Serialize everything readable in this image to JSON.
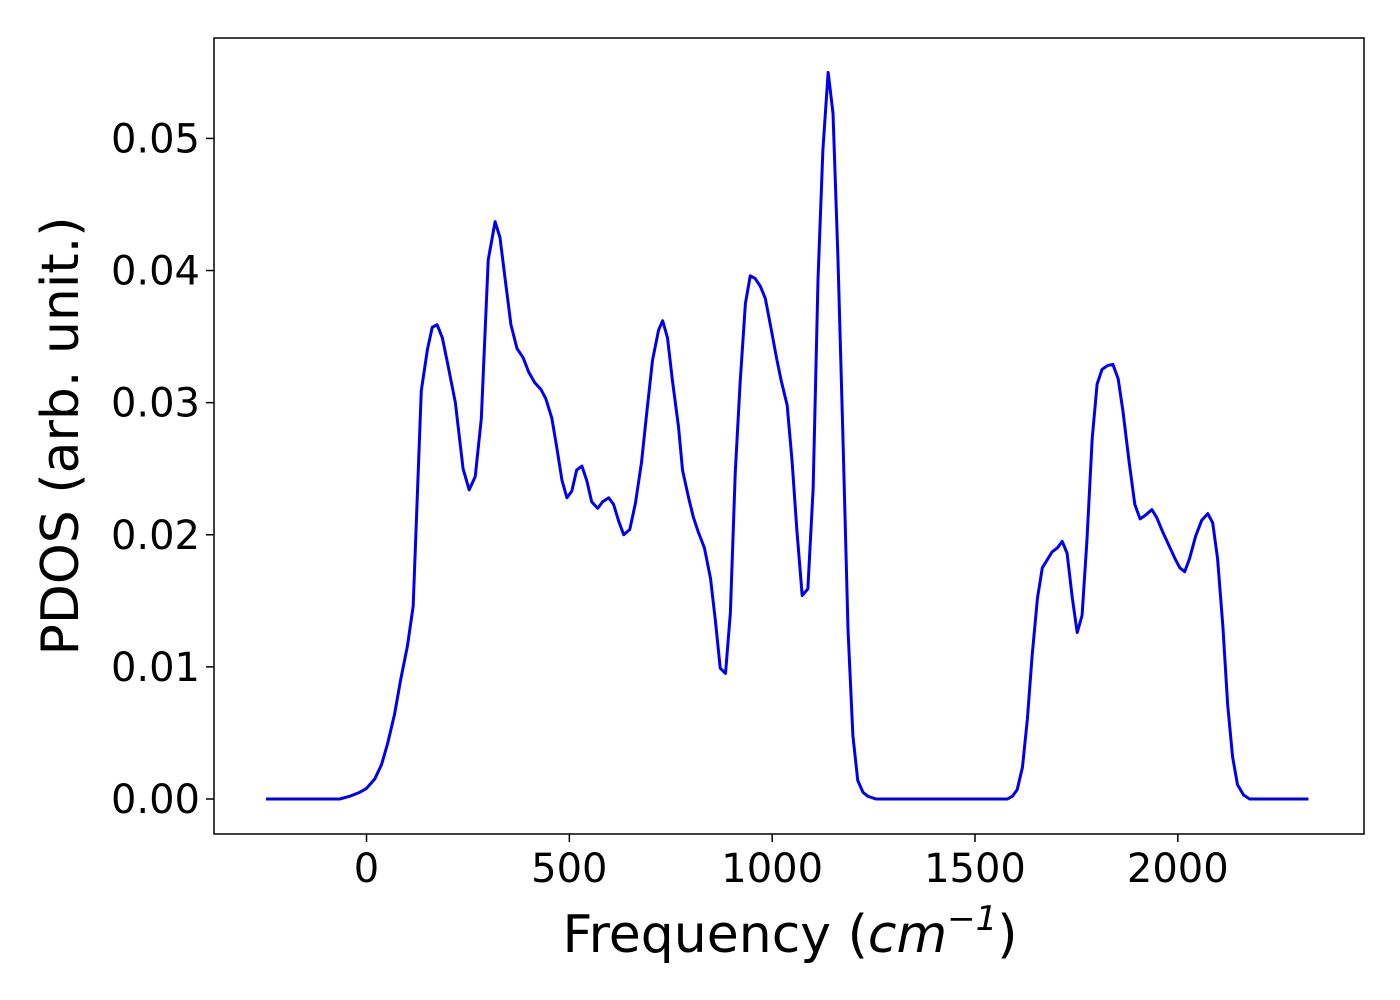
{
  "chart_data": {
    "type": "line",
    "xlabel": [
      "Frequency (",
      "cm",
      "−1",
      ")"
    ],
    "ylabel": "PDOS (arb. unit.)",
    "xlim": [
      -376,
      2459
    ],
    "ylim": [
      -0.00265,
      0.0576
    ],
    "xticks": [
      0,
      500,
      1000,
      1500,
      2000
    ],
    "yticks": [
      {
        "value": 0,
        "label": "0.00"
      },
      {
        "value": 0.01,
        "label": "0.01"
      },
      {
        "value": 0.02,
        "label": "0.02"
      },
      {
        "value": 0.03,
        "label": "0.03"
      },
      {
        "value": 0.04,
        "label": "0.04"
      },
      {
        "value": 0.05,
        "label": "0.05"
      }
    ],
    "grid": false,
    "series": [
      {
        "color": "#0000ee",
        "x": [
          -248,
          -66,
          -42,
          -17,
          0,
          20,
          37,
          52,
          69,
          84,
          101,
          115,
          135,
          150,
          162,
          174,
          187,
          201,
          219,
          238,
          253,
          268,
          283,
          300,
          317,
          329,
          342,
          356,
          371,
          386,
          400,
          415,
          430,
          442,
          457,
          469,
          482,
          494,
          506,
          518,
          531,
          543,
          555,
          570,
          582,
          597,
          609,
          622,
          634,
          649,
          663,
          678,
          690,
          705,
          720,
          730,
          742,
          754,
          769,
          779,
          794,
          806,
          818,
          833,
          848,
          860,
          872,
          885,
          897,
          909,
          921,
          934,
          946,
          958,
          971,
          983,
          998,
          1010,
          1022,
          1037,
          1049,
          1061,
          1074,
          1088,
          1101,
          1113,
          1125,
          1138,
          1150,
          1162,
          1174,
          1187,
          1199,
          1211,
          1224,
          1236,
          1256,
          1580,
          1592,
          1604,
          1617,
          1629,
          1641,
          1654,
          1666,
          1678,
          1690,
          1703,
          1715,
          1727,
          1740,
          1752,
          1764,
          1776,
          1789,
          1801,
          1813,
          1826,
          1840,
          1853,
          1865,
          1880,
          1894,
          1907,
          1921,
          1936,
          1948,
          1963,
          1978,
          1993,
          2005,
          2017,
          2029,
          2044,
          2059,
          2074,
          2086,
          2098,
          2111,
          2123,
          2135,
          2147,
          2162,
          2177,
          2322
        ],
        "values": [
          0,
          0,
          0.0002,
          0.0005,
          0.0008,
          0.0015,
          0.0026,
          0.0042,
          0.0064,
          0.009,
          0.0116,
          0.0146,
          0.0309,
          0.034,
          0.0357,
          0.0359,
          0.0349,
          0.0328,
          0.03,
          0.025,
          0.0234,
          0.0244,
          0.0288,
          0.0408,
          0.0437,
          0.0425,
          0.0393,
          0.0359,
          0.0341,
          0.0334,
          0.0323,
          0.0315,
          0.031,
          0.0303,
          0.0288,
          0.0266,
          0.0241,
          0.0228,
          0.0233,
          0.0249,
          0.0252,
          0.0241,
          0.0225,
          0.022,
          0.0225,
          0.0228,
          0.0223,
          0.021,
          0.02,
          0.0204,
          0.0224,
          0.0255,
          0.029,
          0.0332,
          0.0355,
          0.0362,
          0.0349,
          0.0317,
          0.0282,
          0.0249,
          0.0228,
          0.0213,
          0.0202,
          0.019,
          0.0167,
          0.0135,
          0.0099,
          0.0095,
          0.0141,
          0.0247,
          0.0315,
          0.0375,
          0.0396,
          0.0394,
          0.0388,
          0.0379,
          0.0355,
          0.0335,
          0.0317,
          0.0298,
          0.0256,
          0.0203,
          0.0154,
          0.0159,
          0.0235,
          0.0393,
          0.0491,
          0.055,
          0.0519,
          0.0411,
          0.0279,
          0.0128,
          0.0048,
          0.0014,
          0.0005,
          0.0002,
          0,
          0,
          0.0002,
          0.0007,
          0.0024,
          0.006,
          0.0109,
          0.0152,
          0.0175,
          0.0181,
          0.0187,
          0.019,
          0.0195,
          0.0186,
          0.0152,
          0.0126,
          0.0139,
          0.0196,
          0.0273,
          0.0314,
          0.0325,
          0.0328,
          0.0329,
          0.0318,
          0.0293,
          0.0255,
          0.0223,
          0.0212,
          0.0215,
          0.0219,
          0.0213,
          0.0202,
          0.0192,
          0.0182,
          0.0175,
          0.0172,
          0.0182,
          0.0199,
          0.0211,
          0.0216,
          0.0209,
          0.0182,
          0.0131,
          0.0071,
          0.0032,
          0.0011,
          0.0003,
          0,
          0
        ]
      }
    ]
  }
}
